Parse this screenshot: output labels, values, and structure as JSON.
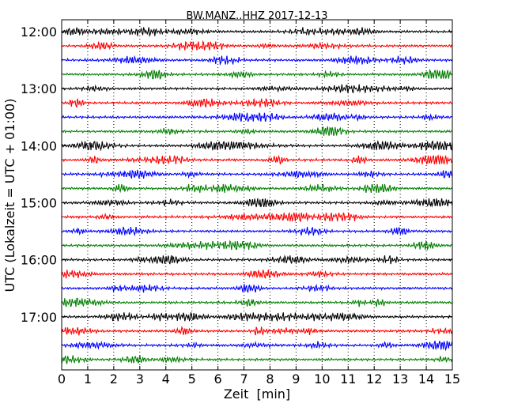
{
  "chart_data": {
    "type": "line",
    "title": "BW.MANZ..HHZ 2017-12-13",
    "xlabel": "Zeit  [min]",
    "ylabel": "UTC (Lokalzeit = UTC + 01:00)",
    "xlim": [
      0,
      15
    ],
    "x_ticks": [
      "0",
      "1",
      "2",
      "3",
      "4",
      "5",
      "6",
      "7",
      "8",
      "9",
      "10",
      "11",
      "12",
      "13",
      "14",
      "15"
    ],
    "y_tick_labels": [
      "12:00",
      "13:00",
      "14:00",
      "15:00",
      "16:00",
      "17:00"
    ],
    "y_tick_trace_index": [
      0,
      4,
      8,
      12,
      16,
      20
    ],
    "trace_interval_min": 15,
    "trace_count": 24,
    "trace_colors": [
      "#000000",
      "#ff0000",
      "#0000ff",
      "#007f00"
    ],
    "grid": "vertical dotted at each minute",
    "note": "Each row is one 15-minute segment of the seismogram; rows start at 12:00, 12:15, 12:30 … 17:45."
  }
}
